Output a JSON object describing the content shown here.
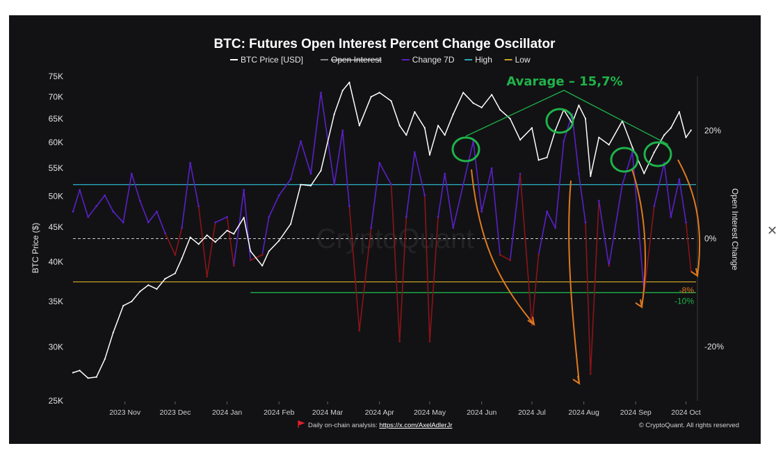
{
  "chart_data": {
    "type": "line",
    "title": "BTC: Futures Open Interest Percent Change Oscillator",
    "legend": [
      {
        "name": "BTC Price [USD]",
        "color": "#ffffff",
        "strike": false
      },
      {
        "name": "Open Interest",
        "color": "#888888",
        "strike": true
      },
      {
        "name": "Change 7D",
        "color": "#5a20c8",
        "strike": false
      },
      {
        "name": "High",
        "color": "#2aa7b8",
        "strike": false
      },
      {
        "name": "Low",
        "color": "#c9a227",
        "strike": false
      }
    ],
    "legend_position": "top-center",
    "grid": false,
    "y_left": {
      "label": "BTC Price ($)",
      "scale": "log",
      "range": [
        25000,
        75000
      ],
      "ticks": [
        25000,
        30000,
        35000,
        40000,
        45000,
        50000,
        55000,
        60000,
        65000,
        70000,
        75000
      ],
      "tick_labels": [
        "25K",
        "30K",
        "35K",
        "40K",
        "45K",
        "50K",
        "55K",
        "60K",
        "65K",
        "70K",
        "75K"
      ]
    },
    "y_right": {
      "label": "Open Interest Change",
      "range": [
        -30,
        30
      ],
      "ticks": [
        -20,
        0,
        20
      ],
      "tick_labels": [
        "-20%",
        "0%",
        "20%"
      ]
    },
    "x_axis": {
      "range": [
        "2023-10-01",
        "2024-10-07"
      ],
      "ticks": [
        "2023-11-01",
        "2023-12-01",
        "2024-01-01",
        "2024-02-01",
        "2024-03-01",
        "2024-04-01",
        "2024-05-01",
        "2024-06-01",
        "2024-07-01",
        "2024-08-01",
        "2024-09-01",
        "2024-10-01"
      ],
      "tick_labels": [
        "2023 Nov",
        "2023 Dec",
        "2024 Jan",
        "2024 Feb",
        "2024 Mar",
        "2024 Apr",
        "2024 May",
        "2024 Jun",
        "2024 Jul",
        "2024 Aug",
        "2024 Sep",
        "2024 Oct"
      ]
    },
    "series": [
      {
        "name": "BTC Price [USD]",
        "axis": "left",
        "color": "#ffffff",
        "x": [
          "2023-10-01",
          "2023-10-05",
          "2023-10-10",
          "2023-10-15",
          "2023-10-20",
          "2023-10-25",
          "2023-10-31",
          "2023-11-05",
          "2023-11-10",
          "2023-11-15",
          "2023-11-20",
          "2023-11-25",
          "2023-12-01",
          "2023-12-05",
          "2023-12-10",
          "2023-12-15",
          "2023-12-20",
          "2023-12-25",
          "2024-01-01",
          "2024-01-05",
          "2024-01-11",
          "2024-01-15",
          "2024-01-22",
          "2024-01-26",
          "2024-02-01",
          "2024-02-08",
          "2024-02-14",
          "2024-02-20",
          "2024-02-26",
          "2024-03-05",
          "2024-03-10",
          "2024-03-14",
          "2024-03-20",
          "2024-03-27",
          "2024-04-01",
          "2024-04-08",
          "2024-04-13",
          "2024-04-17",
          "2024-04-22",
          "2024-04-28",
          "2024-05-01",
          "2024-05-06",
          "2024-05-10",
          "2024-05-15",
          "2024-05-21",
          "2024-05-27",
          "2024-06-01",
          "2024-06-07",
          "2024-06-12",
          "2024-06-18",
          "2024-06-24",
          "2024-07-01",
          "2024-07-05",
          "2024-07-10",
          "2024-07-15",
          "2024-07-20",
          "2024-07-25",
          "2024-07-29",
          "2024-08-02",
          "2024-08-05",
          "2024-08-10",
          "2024-08-16",
          "2024-08-24",
          "2024-08-30",
          "2024-09-06",
          "2024-09-12",
          "2024-09-18",
          "2024-09-22",
          "2024-09-27",
          "2024-10-01",
          "2024-10-04"
        ],
        "values": [
          27500,
          27700,
          27000,
          27100,
          28800,
          31500,
          34500,
          35000,
          36200,
          37000,
          36500,
          37800,
          38500,
          40500,
          43500,
          42500,
          43800,
          42800,
          44500,
          44000,
          46500,
          41500,
          39500,
          41500,
          43000,
          45500,
          52000,
          51800,
          54500,
          66000,
          71500,
          73500,
          63500,
          70000,
          71000,
          69000,
          63500,
          61500,
          66500,
          63000,
          57500,
          63500,
          61500,
          66000,
          71000,
          68500,
          67500,
          70500,
          67000,
          65000,
          60500,
          63000,
          56500,
          57000,
          62500,
          67000,
          64000,
          68000,
          65000,
          53500,
          61000,
          59500,
          64500,
          59000,
          54000,
          58000,
          61500,
          63000,
          66500,
          61000,
          62500
        ]
      },
      {
        "name": "Change 7D",
        "axis": "right",
        "color": "#5a20c8",
        "color_negative": "#8b1418",
        "x": [
          "2023-10-01",
          "2023-10-05",
          "2023-10-10",
          "2023-10-15",
          "2023-10-20",
          "2023-10-25",
          "2023-10-31",
          "2023-11-05",
          "2023-11-10",
          "2023-11-15",
          "2023-11-20",
          "2023-11-25",
          "2023-12-01",
          "2023-12-05",
          "2023-12-10",
          "2023-12-15",
          "2023-12-20",
          "2023-12-25",
          "2024-01-01",
          "2024-01-05",
          "2024-01-11",
          "2024-01-15",
          "2024-01-22",
          "2024-01-26",
          "2024-02-01",
          "2024-02-08",
          "2024-02-14",
          "2024-02-20",
          "2024-02-26",
          "2024-03-05",
          "2024-03-10",
          "2024-03-14",
          "2024-03-20",
          "2024-03-27",
          "2024-04-01",
          "2024-04-08",
          "2024-04-13",
          "2024-04-17",
          "2024-04-22",
          "2024-04-28",
          "2024-05-01",
          "2024-05-06",
          "2024-05-10",
          "2024-05-15",
          "2024-05-21",
          "2024-05-27",
          "2024-06-01",
          "2024-06-07",
          "2024-06-12",
          "2024-06-18",
          "2024-06-24",
          "2024-07-01",
          "2024-07-05",
          "2024-07-10",
          "2024-07-15",
          "2024-07-20",
          "2024-07-25",
          "2024-07-29",
          "2024-08-02",
          "2024-08-05",
          "2024-08-10",
          "2024-08-16",
          "2024-08-24",
          "2024-08-30",
          "2024-09-06",
          "2024-09-12",
          "2024-09-18",
          "2024-09-22",
          "2024-09-27",
          "2024-10-01",
          "2024-10-04"
        ],
        "values": [
          5,
          9,
          4,
          6,
          8,
          5,
          3,
          12,
          7,
          3,
          5,
          1,
          -3,
          2,
          14,
          6,
          -7,
          3,
          4,
          -5,
          9,
          -4,
          -3,
          4,
          8,
          11,
          18,
          12,
          27,
          10,
          20,
          6,
          -17,
          2,
          14,
          10,
          -19,
          4,
          16,
          8,
          -19,
          4,
          12,
          2,
          10,
          18,
          5,
          13,
          -3,
          -4,
          12,
          -16,
          -3,
          5,
          2,
          18,
          23,
          12,
          3,
          -25,
          7,
          -5,
          10,
          16,
          -10,
          6,
          14,
          4,
          11,
          3,
          -6
        ]
      },
      {
        "name": "High",
        "axis": "right",
        "color": "#2aa7b8",
        "values": [
          10
        ]
      },
      {
        "name": "Low",
        "axis": "right",
        "color": "#c9a227",
        "values": [
          -8
        ]
      }
    ],
    "threshold_labels": [
      {
        "text": "-8%",
        "value": -8,
        "color": "#e07a1f"
      },
      {
        "text": "-10%",
        "value": -10,
        "color": "#1fb34a"
      }
    ],
    "annotations": [
      {
        "text": "Avarage – 15,7%",
        "color": "#1fb34a"
      }
    ],
    "watermark": "CryptoQuant",
    "footer": {
      "label": "Daily on-chain analysis: ",
      "link": "https://x.com/AxelAdlerJr",
      "copyright": "© CryptoQuant. All rights reserved"
    }
  }
}
